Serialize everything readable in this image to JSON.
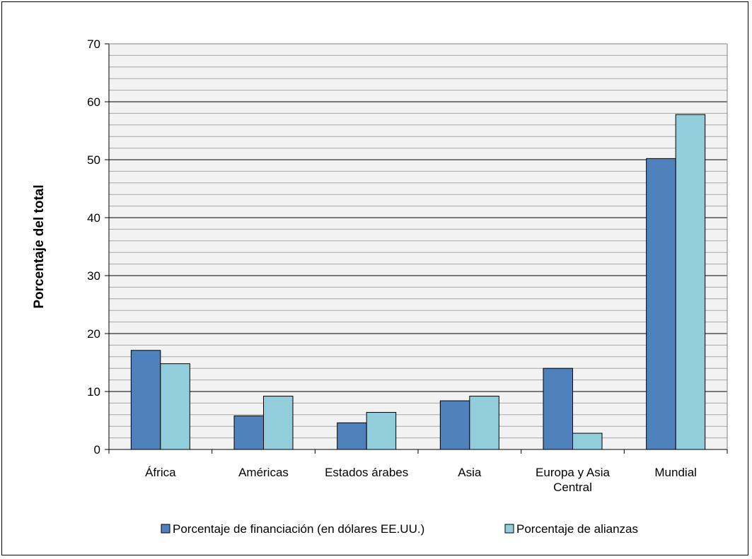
{
  "chart_data": {
    "type": "bar",
    "title": "",
    "xlabel": "",
    "ylabel": "Porcentaje del total",
    "ylim": [
      0,
      70
    ],
    "yticks": [
      0,
      10,
      20,
      30,
      40,
      50,
      60,
      70
    ],
    "minor_grid_step": 2,
    "grid": true,
    "legend_position": "bottom",
    "categories": [
      [
        "África"
      ],
      [
        "Américas"
      ],
      [
        "Estados árabes"
      ],
      [
        "Asia"
      ],
      [
        "Europa y Asia",
        "Central"
      ],
      [
        "Mundial"
      ]
    ],
    "series": [
      {
        "name": "Porcentaje de financiación (en dólares EE.UU.)",
        "color": "#4f81bd",
        "values": [
          17.1,
          5.8,
          4.6,
          8.4,
          14.0,
          50.2
        ]
      },
      {
        "name": "Porcentaje de alianzas",
        "color": "#92cddc",
        "values": [
          14.8,
          9.2,
          6.4,
          9.2,
          2.8,
          57.8
        ]
      }
    ],
    "plot_background": "#f2f2f2"
  }
}
